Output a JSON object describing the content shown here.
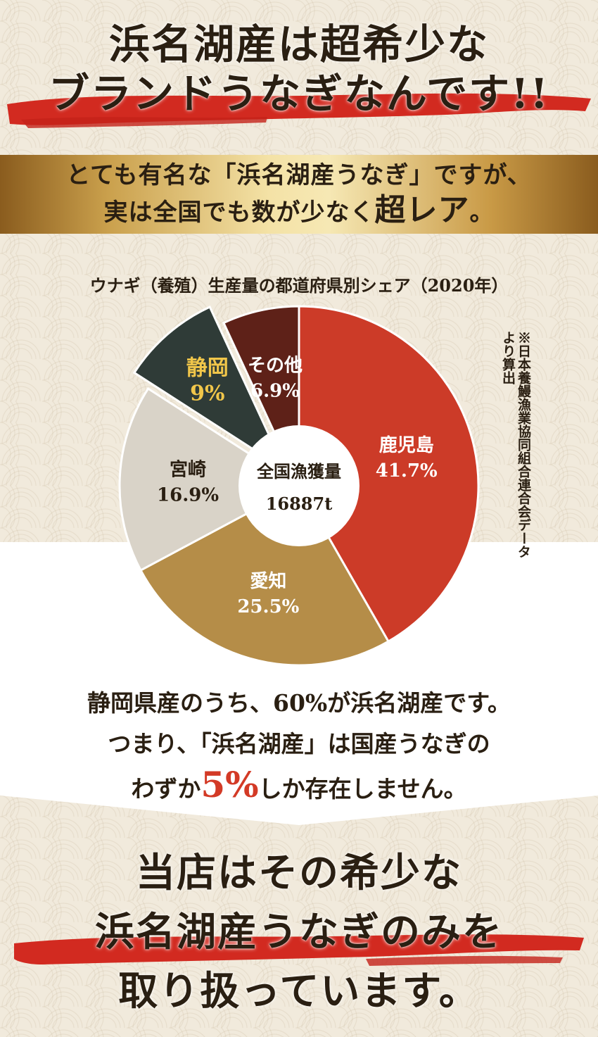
{
  "headline_top": {
    "line1": "浜名湖産は超希少な",
    "line2": "ブランドうなぎなんです!!"
  },
  "gold_banner": {
    "line1": "とても有名な「浜名湖産うなぎ」ですが、",
    "line2_prefix": "実は全国でも数が少なく",
    "line2_emphasis": "超レア",
    "line2_suffix": "。"
  },
  "chart_data": {
    "type": "pie",
    "title": "ウナギ（養殖）生産量の都道府県別シェア（2020年）",
    "center_label": "全国漁獲量",
    "center_value": "16887t",
    "note": "※日本養鰻漁業協同組合連合会データより算出",
    "slices": [
      {
        "name": "鹿児島",
        "label": "41.7%",
        "value": 41.7,
        "color": "#cc3b28",
        "text_color": "#ffffff"
      },
      {
        "name": "愛知",
        "label": "25.5%",
        "value": 25.5,
        "color": "#b58d48",
        "text_color": "#ffffff"
      },
      {
        "name": "宮崎",
        "label": "16.9%",
        "value": 16.9,
        "color": "#d9d3c8",
        "text_color": "#2a1f12"
      },
      {
        "name": "静岡",
        "label": "9%",
        "value": 9.0,
        "color": "#2f3b37",
        "text_color": "#f1c64a",
        "exploded": true
      },
      {
        "name": "その他",
        "label": "6.9%",
        "value": 6.9,
        "color": "#5e2118",
        "text_color": "#ffffff"
      }
    ]
  },
  "middle_text": {
    "line1": "静岡県産のうち、60%が浜名湖産です。",
    "line2": "つまり、「浜名湖産」は国産うなぎの",
    "line3_prefix": "わずか",
    "line3_emphasis": "5%",
    "line3_suffix": "しか存在しません。"
  },
  "headline_bottom": {
    "line1": "当店はその希少な",
    "line2": "浜名湖産うなぎのみを",
    "line3": "取り扱っています。"
  },
  "colors": {
    "brush_red": "#d22a20",
    "dark_text": "#2a1f12",
    "emphasis_red": "#d33a26"
  }
}
